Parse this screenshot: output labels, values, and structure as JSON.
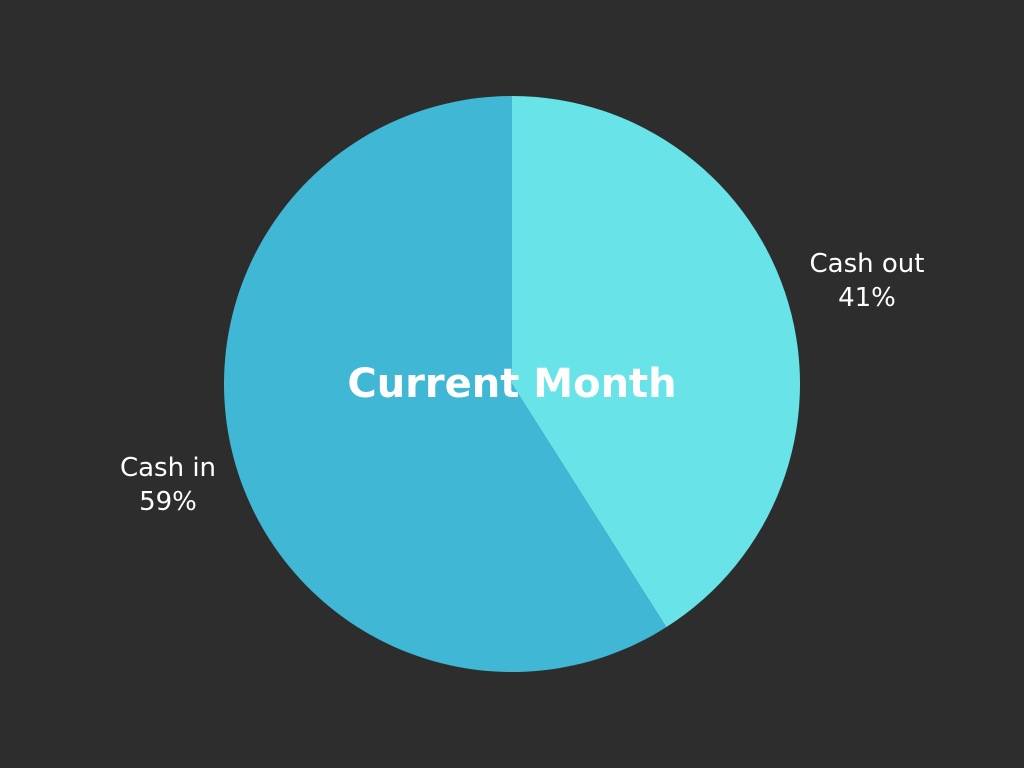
{
  "chart_data": {
    "type": "pie",
    "title": "Current Month",
    "slices": [
      {
        "label": "Cash out",
        "value": 41,
        "value_label": "41%",
        "color": "#68e4e8"
      },
      {
        "label": "Cash in",
        "value": 59,
        "value_label": "59%",
        "color": "#41b7d6"
      }
    ],
    "background": "#2d2d2d"
  }
}
